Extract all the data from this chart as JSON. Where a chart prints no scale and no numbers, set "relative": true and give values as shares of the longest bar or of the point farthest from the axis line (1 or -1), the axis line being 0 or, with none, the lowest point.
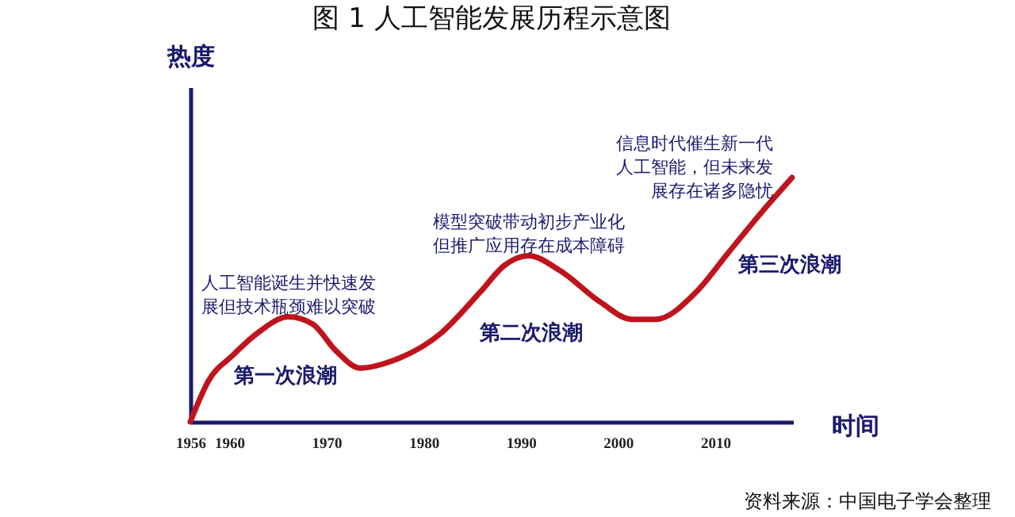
{
  "chart_data": {
    "type": "line",
    "title": "图 1  人工智能发展历程示意图",
    "xlabel": "时间",
    "ylabel": "热度",
    "relative": true,
    "tick_labels": "x",
    "grid": false,
    "marker": "none",
    "line_style": "solid",
    "xlim": [
      1956,
      2018
    ],
    "xticks": [
      1956,
      1960,
      1970,
      1980,
      1990,
      2000,
      2010
    ],
    "series": [
      {
        "color": "#c0141c",
        "x": [
          1956,
          1957.9,
          1960.3,
          1962.8,
          1966.1,
          1968.6,
          1971,
          1973.5,
          1976.8,
          1981.7,
          1985.8,
          1988.3,
          1990.8,
          1994,
          1998.2,
          2001.4,
          2003.9,
          2008,
          2011.3,
          2014.6,
          2017.9
        ],
        "values": [
          0,
          0.17,
          0.27,
          0.36,
          0.43,
          0.4,
          0.29,
          0.22,
          0.25,
          0.36,
          0.53,
          0.64,
          0.68,
          0.62,
          0.49,
          0.42,
          0.42,
          0.53,
          0.69,
          0.85,
          1.0
        ]
      }
    ],
    "annotations": [
      {
        "text": "人工智能诞生并快速发展但技术瓶颈难以突破",
        "x": 1966.1,
        "y": 0.43
      },
      "第一次浪潮",
      {
        "text": "模型突破带动初步产业化但推广应用存在成本障碍",
        "x": 1990.8,
        "y": 0.68
      },
      "第二次浪潮",
      {
        "text": "信息时代催生新一代人工智能，但未来发展存在诸多隐忧",
        "x": 2017.9,
        "y": 1.0
      },
      "第三次浪潮",
      "资料来源：中国电子学会整理"
    ]
  }
}
